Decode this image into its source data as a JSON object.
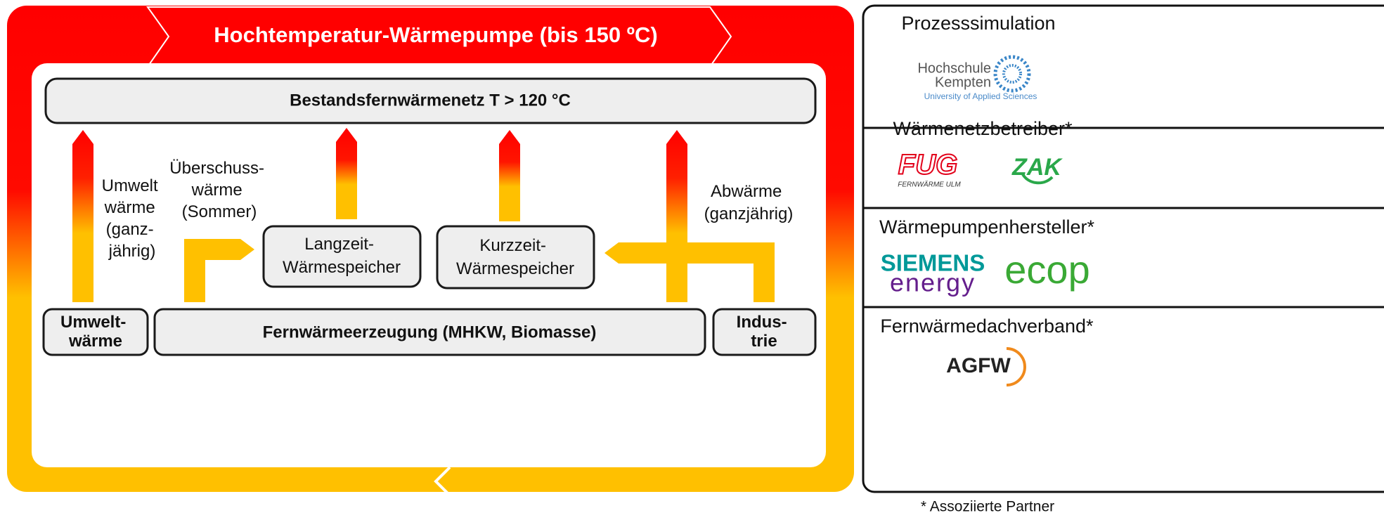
{
  "title": "Hochtemperatur-Wärmepumpe (bis 150 ºC)",
  "network": "Bestandsfernwärmenetz T > 120 °C",
  "flows": {
    "environment": [
      "Umwelt",
      "wärme",
      "(ganz-",
      "jährig)"
    ],
    "surplus": [
      "Überschuss-",
      "wärme",
      "(Sommer)"
    ],
    "waste": [
      "Abwärme",
      "(ganzjährig)"
    ]
  },
  "storage": {
    "long_term": [
      "Langzeit-",
      "Wärmespeicher"
    ],
    "short_term": [
      "Kurzzeit-",
      "Wärmespeicher"
    ]
  },
  "sources": {
    "environment": [
      "Umwelt-",
      "wärme"
    ],
    "generation": "Fernwärmeerzeugung (MHKW, Biomasse)",
    "industry": [
      "Indus-",
      "trie"
    ]
  },
  "partners": [
    {
      "title": "Prozesssimulation",
      "logos": [
        "Hochschule",
        "Kempten",
        "University of Applied Sciences"
      ]
    },
    {
      "title": "Wärmenetzbetreiber*",
      "logos": [
        "FUG",
        "FERNWÄRME ULM",
        "ZAK"
      ]
    },
    {
      "title": "Wärmepumpenhersteller*",
      "logos": [
        "SIEMENS",
        "energy",
        "ecop"
      ]
    },
    {
      "title": "Fernwärmedachverband*",
      "logos": [
        "AGFW"
      ]
    }
  ],
  "footnote": "* Assoziierte Partner"
}
